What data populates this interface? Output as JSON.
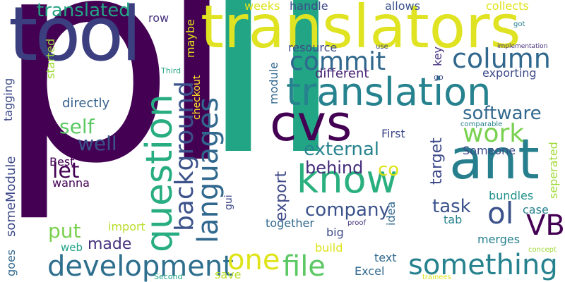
{
  "colors": {
    "background": "#ffffff",
    "palette": [
      "#440154",
      "#46327e",
      "#365c8d",
      "#277f8e",
      "#1fa187",
      "#4ac16d",
      "#a0da39",
      "#fde725"
    ]
  },
  "words": [
    {
      "id": "pl",
      "text": "pl",
      "color": "#440154"
    },
    {
      "id": "li",
      "text": "li",
      "color": "#21a585"
    },
    {
      "id": "tool",
      "text": "tool",
      "color": "#3b3f80"
    },
    {
      "id": "translators",
      "text": "translators",
      "color": "#dfe321"
    },
    {
      "id": "translation",
      "text": "translation",
      "color": "#26828e"
    },
    {
      "id": "cvs",
      "text": "cvs",
      "color": "#440154"
    },
    {
      "id": "ant",
      "text": "ant",
      "color": "#277f8e"
    },
    {
      "id": "know",
      "text": "know",
      "color": "#2ab07f"
    },
    {
      "id": "question",
      "text": "question",
      "color": "#27ad81"
    },
    {
      "id": "languages",
      "text": "languages",
      "color": "#31688e"
    },
    {
      "id": "background",
      "text": "background",
      "color": "#3b528b"
    },
    {
      "id": "column",
      "text": "column",
      "color": "#31688e"
    },
    {
      "id": "commit",
      "text": "commit",
      "color": "#31688e"
    },
    {
      "id": "work",
      "text": "work",
      "color": "#7ad151"
    },
    {
      "id": "software",
      "text": "software",
      "color": "#31688e"
    },
    {
      "id": "external",
      "text": "external",
      "color": "#26828e"
    },
    {
      "id": "development",
      "text": "development",
      "color": "#2e6f8e"
    },
    {
      "id": "one",
      "text": "one",
      "color": "#dfe318"
    },
    {
      "id": "file",
      "text": "file",
      "color": "#5cc863"
    },
    {
      "id": "something",
      "text": "something",
      "color": "#26828e"
    },
    {
      "id": "VB",
      "text": "VB",
      "color": "#440154"
    },
    {
      "id": "ol",
      "text": "ol",
      "color": "#3b528b"
    },
    {
      "id": "task",
      "text": "task",
      "color": "#3b528b"
    },
    {
      "id": "company",
      "text": "company",
      "color": "#3b528b"
    },
    {
      "id": "behind",
      "text": "behind",
      "color": "#472d7b"
    },
    {
      "id": "co",
      "text": "co",
      "color": "#dfe318"
    },
    {
      "id": "export",
      "text": "export",
      "color": "#3e4a89"
    },
    {
      "id": "target",
      "text": "target",
      "color": "#3e4a89"
    },
    {
      "id": "translated",
      "text": "translated",
      "color": "#25a584"
    },
    {
      "id": "self",
      "text": "self",
      "color": "#5cc863"
    },
    {
      "id": "well",
      "text": "well",
      "color": "#3b528b"
    },
    {
      "id": "let",
      "text": "let",
      "color": "#440154"
    },
    {
      "id": "put",
      "text": "put",
      "color": "#7ad151"
    },
    {
      "id": "made",
      "text": "made",
      "color": "#46327e"
    },
    {
      "id": "someModule",
      "text": "someModule",
      "color": "#3e4a89"
    },
    {
      "id": "tagging",
      "text": "tagging",
      "color": "#3e4a89"
    },
    {
      "id": "directly",
      "text": "directly",
      "color": "#31688e"
    },
    {
      "id": "goes",
      "text": "goes",
      "color": "#35608d"
    },
    {
      "id": "Best",
      "text": "Best",
      "color": "#440154"
    },
    {
      "id": "wanna",
      "text": "wanna",
      "color": "#440154"
    },
    {
      "id": "import",
      "text": "import",
      "color": "#b8de29"
    },
    {
      "id": "web",
      "text": "web",
      "color": "#20a386"
    },
    {
      "id": "build",
      "text": "build",
      "color": "#dfe318"
    },
    {
      "id": "save",
      "text": "save",
      "color": "#b8de29"
    },
    {
      "id": "Second",
      "text": "Second",
      "color": "#1fa187"
    },
    {
      "id": "Excel",
      "text": "Excel",
      "color": "#31688e"
    },
    {
      "id": "text",
      "text": "text",
      "color": "#31688e"
    },
    {
      "id": "trainees",
      "text": "trainees",
      "color": "#dfe318"
    },
    {
      "id": "concept",
      "text": "concept",
      "color": "#a0da39"
    },
    {
      "id": "merges",
      "text": "merges",
      "color": "#277f8e"
    },
    {
      "id": "case",
      "text": "case",
      "color": "#26828e"
    },
    {
      "id": "bundles",
      "text": "bundles",
      "color": "#21918c"
    },
    {
      "id": "seperated",
      "text": "seperated",
      "color": "#a0da39"
    },
    {
      "id": "Someone",
      "text": "Someone",
      "color": "#3e4a89"
    },
    {
      "id": "First",
      "text": "First",
      "color": "#3e4a89"
    },
    {
      "id": "comparable",
      "text": "comparable",
      "color": "#277f8e"
    },
    {
      "id": "exporting",
      "text": "exporting",
      "color": "#3e4a89"
    },
    {
      "id": "go",
      "text": "go",
      "color": "#3e4a89"
    },
    {
      "id": "implementation",
      "text": "implementation",
      "color": "#46327e"
    },
    {
      "id": "key",
      "text": "key",
      "color": "#46327e"
    },
    {
      "id": "use",
      "text": "use",
      "color": "#3e4a89"
    },
    {
      "id": "got",
      "text": "got",
      "color": "#26828e"
    },
    {
      "id": "different",
      "text": "different",
      "color": "#482475"
    },
    {
      "id": "resource",
      "text": "resource",
      "color": "#3e4a89"
    },
    {
      "id": "module",
      "text": "module",
      "color": "#31688e"
    },
    {
      "id": "idea",
      "text": "idea",
      "color": "#31688e"
    },
    {
      "id": "together",
      "text": "together",
      "color": "#31688e"
    },
    {
      "id": "big",
      "text": "big",
      "color": "#3e4a89"
    },
    {
      "id": "proof",
      "text": "proof",
      "color": "#46327e"
    },
    {
      "id": "tab",
      "text": "tab",
      "color": "#26828e"
    },
    {
      "id": "gui",
      "text": "gui",
      "color": "#3e4a89"
    },
    {
      "id": "checkout",
      "text": "checkout",
      "color": "#fde725"
    },
    {
      "id": "maybe",
      "text": "maybe",
      "color": "#dfe318"
    },
    {
      "id": "started",
      "text": "started",
      "color": "#a0da39"
    },
    {
      "id": "Third",
      "text": "Third",
      "color": "#25a584"
    },
    {
      "id": "row",
      "text": "row",
      "color": "#46327e"
    },
    {
      "id": "weeks",
      "text": "weeks",
      "color": "#dfe318"
    },
    {
      "id": "handle",
      "text": "handle",
      "color": "#3e4a89"
    },
    {
      "id": "allows",
      "text": "allows",
      "color": "#3b528b"
    },
    {
      "id": "collects",
      "text": "collects",
      "color": "#dfe318"
    }
  ]
}
